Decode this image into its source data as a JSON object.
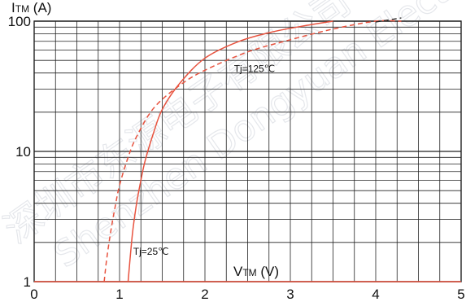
{
  "chart_data": {
    "type": "line",
    "ylabel": {
      "main": "I",
      "sub": "TM",
      "unit": " (A)"
    },
    "xlabel": {
      "main": "V",
      "sub": "TM",
      "unit": " (V)"
    },
    "xlim": [
      0,
      5
    ],
    "ylim": [
      1,
      100
    ],
    "yscale": "log",
    "grid": true,
    "x_ticks": [
      "0",
      "1",
      "2",
      "3",
      "4",
      "5"
    ],
    "y_ticks": [
      "1",
      "10",
      "100"
    ],
    "series": [
      {
        "name": "Tj=25℃",
        "style": "solid",
        "color": "#e8533f",
        "x": [
          1.1,
          1.15,
          1.2,
          1.25,
          1.3,
          1.4,
          1.5,
          1.7,
          2.0,
          2.4,
          2.8,
          3.2,
          3.5
        ],
        "y": [
          1,
          2.3,
          4,
          6,
          8.5,
          14,
          21,
          33,
          52,
          70,
          83,
          93,
          100
        ]
      },
      {
        "name": "Tj=125℃",
        "style": "dashed",
        "color": "#e8533f",
        "x": [
          0.82,
          0.85,
          0.9,
          0.95,
          1.0,
          1.1,
          1.2,
          1.4,
          1.7,
          2.0,
          2.5,
          3.0,
          3.5,
          4.0,
          4.3
        ],
        "y": [
          1,
          1.5,
          2.5,
          3.8,
          5.5,
          9,
          13,
          21.5,
          32,
          42,
          58,
          72,
          87,
          100,
          100
        ]
      }
    ],
    "annotations": [
      {
        "text": "Tj=125℃",
        "x": 2.34,
        "y": 43
      },
      {
        "text": "Tj=25℃",
        "x": 1.16,
        "y": 1.7
      }
    ]
  },
  "watermark": {
    "lines": [
      "Shenzhen Dongyuan Electronics",
      "深圳市东源电子有限公司"
    ]
  }
}
